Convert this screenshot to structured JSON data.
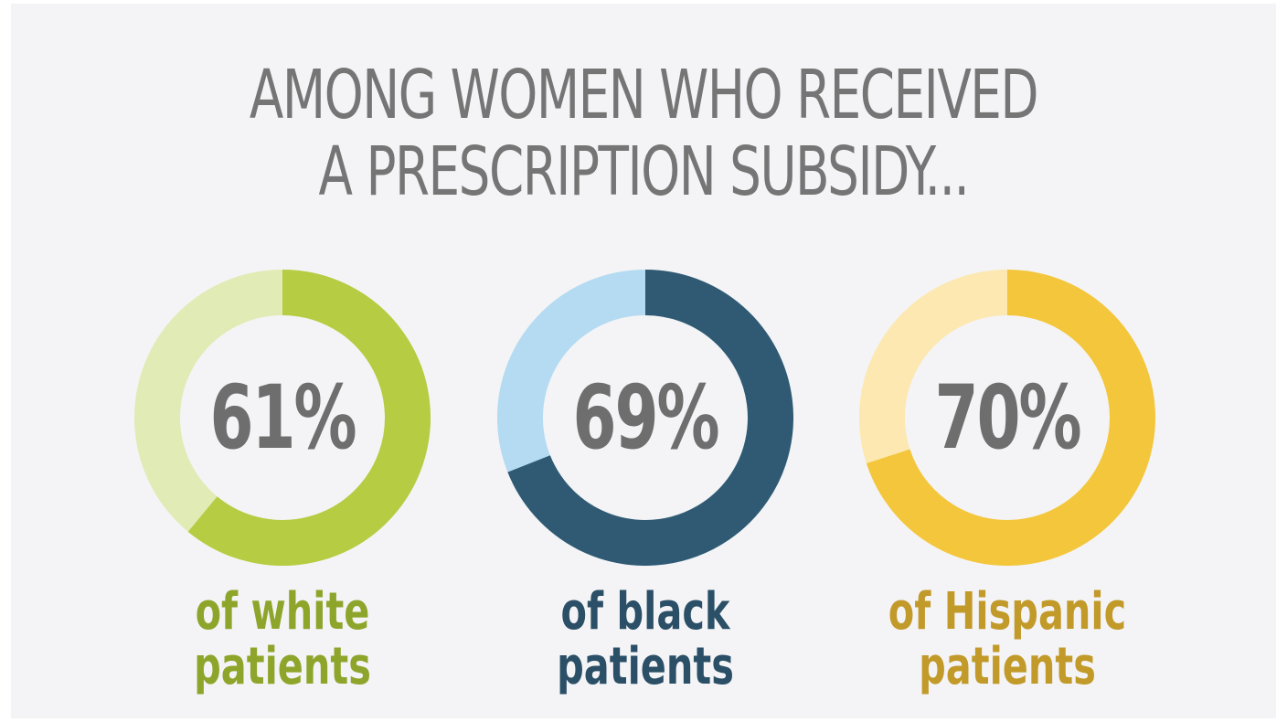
{
  "chart_data": {
    "type": "pie",
    "title_lines": [
      "AMONG WOMEN WHO RECEIVED",
      "A PRESCRIPTION SUBSIDY..."
    ],
    "items": [
      {
        "value": 61,
        "value_label": "61%",
        "label_lines": [
          "of white",
          "patients"
        ],
        "color": "#b6cc42",
        "track_color": "#e1ebb5",
        "label_color": "#8ea52b"
      },
      {
        "value": 69,
        "value_label": "69%",
        "label_lines": [
          "of black",
          "patients"
        ],
        "color": "#305a73",
        "track_color": "#b4dbf1",
        "label_color": "#2a4f66"
      },
      {
        "value": 70,
        "value_label": "70%",
        "label_lines": [
          "of Hispanic",
          "patients"
        ],
        "color": "#f3c63c",
        "track_color": "#fce8b0",
        "label_color": "#c29a2a"
      }
    ]
  }
}
